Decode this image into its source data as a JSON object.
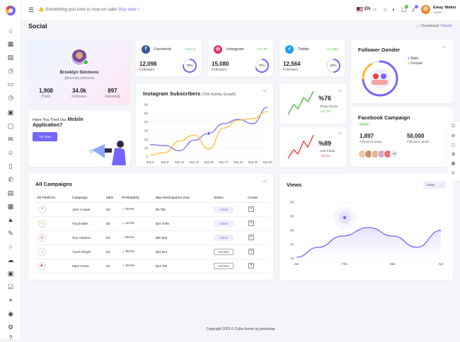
{
  "topbar": {
    "promo_emoji": "👍",
    "promo_text": "Something you love is now on sale!",
    "promo_link": "Buy now !",
    "lang": "EN",
    "user_name": "Emay Walter",
    "user_role": "Admin",
    "cart_badge": "4",
    "notif_badge": "4"
  },
  "page": {
    "title": "Social",
    "crumb_sep": "/",
    "crumb_dashboard": "Dashboard",
    "crumb_current": "Social"
  },
  "profile": {
    "name": "Brooklyn Simmons",
    "handle": "@brookly.simmons",
    "stats": [
      {
        "value": "1,908",
        "label": "Posts"
      },
      {
        "value": "34.0k",
        "label": "Followers"
      },
      {
        "value": "897",
        "label": "Following"
      }
    ]
  },
  "social_cards": [
    {
      "name": "Facebook",
      "change": "+22.1%",
      "value": "12,098",
      "label": "Followers",
      "percent": "78%",
      "pct": 0.78,
      "color": "#3b5998"
    },
    {
      "name": "Instagram",
      "change": "+27.4%",
      "value": "15,080",
      "label": "Followers",
      "percent": "70%",
      "pct": 0.7,
      "color": "#e1306c"
    },
    {
      "name": "Twitter",
      "change": "+14.09%",
      "value": "12,564",
      "label": "Followers",
      "percent": "50%",
      "pct": 0.5,
      "color": "#1da1f2"
    }
  ],
  "instagram_chart": {
    "title": "Instagram Subscribers",
    "subtitle": "(75% Activity Growth)"
  },
  "chart_data": [
    {
      "type": "line",
      "title": "Instagram Subscribers",
      "ylim": [
        0,
        60
      ],
      "yticks": [
        0,
        10,
        20,
        30,
        40,
        50,
        60
      ],
      "categories": [
        "Sep 5",
        "Sep 8",
        "Sep 12",
        "Sep 16",
        "Sep 18",
        "Sep 17",
        "Sep 23",
        "Sep 26",
        "Sep 30"
      ],
      "series": [
        {
          "values": [
            14,
            13,
            7,
            19,
            27,
            38,
            43,
            38,
            57
          ],
          "color": "#7366ff"
        },
        {
          "values": [
            2,
            5,
            18,
            25,
            9,
            33,
            42,
            44,
            52
          ],
          "color": "#ffb829"
        }
      ]
    },
    {
      "type": "area",
      "title": "Views",
      "ylim": [
        70,
        90
      ],
      "yticks": [
        70,
        75,
        80,
        85,
        90
      ],
      "categories": [
        "Jan",
        "Feb",
        "Mar",
        "Apr"
      ],
      "series": [
        {
          "x": [
            0,
            0.45,
            0.95,
            1.5,
            2.0,
            2.5,
            3.0
          ],
          "values": [
            70.5,
            74,
            78,
            81,
            78,
            74,
            80
          ],
          "color": "#7366ff"
        }
      ]
    }
  ],
  "mobile": {
    "line1": "Have You Tried Our",
    "line1_bold": "Mobile",
    "line2": "Application?",
    "button": "Try Now"
  },
  "gender": {
    "title": "Follower Gender",
    "legend": [
      {
        "label": "Male",
        "color": "#7366ff"
      },
      {
        "label": "Female",
        "color": "#ffb829"
      }
    ]
  },
  "photo_clicks": {
    "value": "%76",
    "label": "Photo Clicks",
    "change": "+72.1%",
    "up": true
  },
  "link_clicks": {
    "value": "%89",
    "label": "Link Clicks",
    "change": "-79.1%",
    "up": false
  },
  "fb_campaign": {
    "title": "Facebook Campaign",
    "badge": "Active",
    "followers_today": "1,897",
    "followers_today_label": "Followers today",
    "followers_goals": "50,000",
    "followers_goals_label": "Followers goals",
    "more": "+5"
  },
  "campaigns": {
    "title": "All Campaigns",
    "headers": [
      "AD Platform",
      "Campaign",
      "GEO",
      "Profitability",
      "Max Participation Avai.",
      "Status",
      "Create"
    ],
    "rows": [
      {
        "platform": "f",
        "pcolor": "#3b5998",
        "campaign": "Jane Cooper",
        "geo": "UK",
        "profit": "45.6%",
        "up": true,
        "max": "$9,786",
        "status": "Active"
      },
      {
        "platform": "◎",
        "pcolor": "#ff9e2c",
        "campaign": "Floyd Miles",
        "geo": "DE",
        "profit": "12.3%",
        "up": false,
        "max": "$19.7098",
        "status": "Active"
      },
      {
        "platform": "◎",
        "pcolor": "#e1306c",
        "campaign": "Guy Hawkins",
        "geo": "ES",
        "profit": "65.6%",
        "up": true,
        "max": "$90,986",
        "status": "Active"
      },
      {
        "platform": "✓",
        "pcolor": "#1da1f2",
        "campaign": "Travis Wright",
        "geo": "ES",
        "profit": "35.6%",
        "up": false,
        "max": "$23,654",
        "status": "Inactive"
      },
      {
        "platform": "▶",
        "pcolor": "#ef3f3e",
        "campaign": "Mark Green",
        "geo": "UK",
        "profit": "45.6%",
        "up": true,
        "max": "$12,796",
        "status": "Inactive"
      }
    ]
  },
  "views": {
    "title": "Views",
    "dropdown": "Today"
  },
  "footer": "Copyright 2023 © Cuba theme by pixelstrap"
}
